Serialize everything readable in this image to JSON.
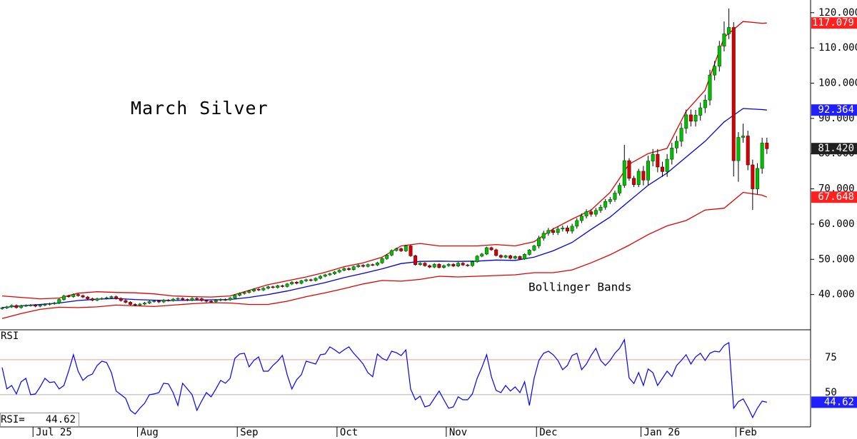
{
  "chart_data": [
    {
      "type": "candlestick",
      "title": "March Silver",
      "annotation": "Bollinger Bands",
      "up_color": "#00c000",
      "down_color": "#d80000",
      "xlim": [
        -0.45,
        170.2
      ],
      "ylim": [
        30,
        123.6
      ],
      "yticks": [
        {
          "value": 40,
          "label": "40.000"
        },
        {
          "value": 50,
          "label": "50.000"
        },
        {
          "value": 60,
          "label": "60.000"
        },
        {
          "value": 70,
          "label": "70.000"
        },
        {
          "value": 80,
          "label": "80.000"
        },
        {
          "value": 90,
          "label": "90.000"
        },
        {
          "value": 100,
          "label": "100.000"
        },
        {
          "value": 110,
          "label": "110.000"
        },
        {
          "value": 120,
          "label": "120.000"
        }
      ],
      "xticks": [
        {
          "value": 6.5,
          "label": "Jul 25"
        },
        {
          "value": 28.5,
          "label": "Aug"
        },
        {
          "value": 49.5,
          "label": "Sep"
        },
        {
          "value": 70.5,
          "label": "Oct"
        },
        {
          "value": 93.5,
          "label": "Nov"
        },
        {
          "value": 112.5,
          "label": "Dec"
        },
        {
          "value": 134.5,
          "label": "Jan 26"
        },
        {
          "value": 154.5,
          "label": "Feb"
        }
      ],
      "open": [
        36.0,
        36.2,
        36.5,
        36.9,
        36.3,
        36.8,
        36.9,
        37.0,
        36.7,
        37.0,
        37.2,
        37.4,
        37.6,
        38.6,
        39.6,
        39.4,
        40.0,
        39.7,
        39.3,
        38.8,
        38.4,
        38.8,
        38.9,
        39.1,
        39.4,
        38.9,
        38.3,
        37.8,
        37.2,
        37.0,
        37.3,
        37.6,
        38.0,
        38.2,
        37.9,
        38.4,
        38.3,
        38.7,
        38.9,
        38.6,
        38.4,
        38.9,
        38.8,
        38.3,
        38.1,
        38.0,
        38.4,
        38.6,
        38.5,
        39.0,
        39.8,
        40.3,
        40.6,
        41.0,
        41.5,
        41.3,
        41.8,
        42.2,
        42.0,
        42.5,
        42.3,
        43.0,
        43.5,
        43.2,
        43.9,
        44.2,
        44.0,
        44.6,
        45.2,
        45.6,
        45.9,
        46.4,
        46.9,
        47.4,
        47.1,
        47.9,
        48.3,
        48.0,
        48.5,
        48.4,
        49.0,
        50.2,
        51.2,
        52.5,
        53.0,
        52.4,
        53.8,
        51.0,
        48.5,
        48.9,
        48.2,
        47.8,
        48.6,
        47.7,
        48.2,
        48.6,
        48.1,
        48.9,
        48.4,
        48.2,
        49.3,
        50.9,
        51.5,
        53.3,
        52.7,
        51.1,
        50.6,
        51.0,
        50.3,
        50.8,
        50.1,
        51.4,
        52.6,
        53.8,
        56.0,
        57.4,
        58.2,
        57.6,
        58.6,
        58.9,
        58.0,
        59.4,
        61.0,
        62.3,
        63.5,
        62.8,
        63.9,
        64.8,
        66.4,
        67.0,
        68.8,
        71.0,
        78.0,
        73.0,
        71.2,
        75.0,
        72.5,
        77.9,
        79.8,
        76.2,
        74.9,
        78.4,
        81.6,
        83.5,
        87.2,
        91.0,
        89.2,
        90.9,
        93.0,
        95.2,
        102.3,
        104.8,
        110.5,
        114.0,
        115.8,
        78.0,
        84.6,
        85.0,
        76.8,
        70.0,
        75.8,
        83.0
      ],
      "high": [
        36.5,
        36.8,
        37.2,
        37.2,
        37.1,
        37.2,
        37.3,
        37.3,
        37.3,
        37.5,
        37.7,
        37.9,
        38.9,
        39.9,
        39.9,
        40.3,
        40.3,
        40.0,
        39.6,
        39.1,
        39.1,
        39.2,
        39.4,
        39.7,
        39.7,
        39.2,
        38.6,
        38.1,
        37.5,
        37.6,
        37.9,
        38.3,
        38.5,
        38.5,
        38.7,
        38.7,
        39.0,
        39.2,
        39.2,
        38.9,
        39.2,
        39.2,
        39.1,
        38.6,
        38.4,
        38.7,
        38.9,
        38.9,
        39.3,
        40.1,
        40.6,
        40.9,
        41.3,
        41.8,
        41.8,
        42.1,
        42.5,
        42.5,
        42.8,
        42.8,
        43.3,
        43.8,
        43.8,
        44.2,
        44.5,
        44.5,
        44.9,
        45.5,
        45.9,
        46.2,
        46.7,
        47.2,
        47.7,
        47.7,
        48.2,
        48.6,
        48.6,
        48.8,
        48.8,
        49.3,
        50.5,
        51.5,
        52.8,
        53.3,
        53.3,
        54.1,
        54.1,
        51.3,
        49.2,
        49.2,
        48.5,
        48.9,
        48.9,
        48.5,
        48.9,
        48.9,
        49.2,
        49.2,
        48.7,
        49.6,
        51.2,
        51.8,
        53.6,
        53.6,
        53.0,
        51.4,
        51.3,
        51.3,
        51.1,
        51.1,
        51.7,
        52.9,
        54.1,
        56.7,
        58.1,
        58.9,
        58.9,
        59.3,
        59.6,
        59.6,
        60.1,
        61.7,
        63.0,
        64.2,
        64.2,
        64.6,
        65.5,
        67.1,
        67.7,
        69.5,
        71.7,
        82.5,
        78.7,
        73.7,
        75.7,
        76.5,
        79.4,
        81.3,
        81.3,
        77.7,
        79.9,
        83.1,
        85.0,
        88.7,
        92.5,
        92.5,
        92.4,
        94.5,
        96.7,
        103.8,
        106.3,
        112.0,
        117.5,
        121.2,
        117.3,
        86.1,
        88.5,
        86.5,
        78.3,
        77.3,
        84.5,
        84.5
      ],
      "low": [
        35.7,
        35.9,
        36.2,
        36.0,
        36.0,
        36.5,
        36.6,
        36.4,
        36.4,
        36.7,
        36.9,
        37.1,
        37.3,
        38.3,
        39.1,
        39.1,
        39.4,
        39.0,
        38.5,
        38.1,
        38.1,
        38.5,
        38.6,
        38.8,
        38.6,
        38.0,
        37.5,
        36.9,
        36.7,
        36.7,
        37.0,
        37.3,
        37.7,
        37.6,
        37.6,
        38.0,
        38.0,
        38.4,
        38.3,
        38.1,
        38.1,
        38.5,
        38.0,
        37.8,
        37.7,
        37.7,
        38.1,
        38.2,
        38.2,
        38.7,
        39.5,
        40.0,
        40.3,
        40.7,
        41.0,
        41.0,
        41.5,
        41.7,
        41.7,
        42.0,
        42.0,
        42.7,
        42.9,
        42.9,
        43.6,
        43.7,
        43.7,
        44.3,
        44.9,
        45.3,
        45.6,
        46.1,
        46.6,
        46.8,
        46.8,
        47.6,
        47.7,
        47.7,
        48.1,
        48.1,
        48.7,
        49.9,
        50.9,
        52.2,
        52.1,
        52.1,
        50.7,
        48.2,
        48.2,
        47.9,
        47.5,
        47.5,
        47.4,
        47.4,
        47.9,
        47.8,
        47.8,
        48.1,
        47.9,
        47.9,
        49.0,
        50.6,
        51.2,
        52.4,
        50.8,
        50.3,
        50.3,
        50.0,
        50.0,
        49.8,
        49.8,
        51.1,
        52.3,
        53.1,
        55.3,
        56.7,
        56.9,
        56.9,
        57.9,
        57.3,
        57.3,
        58.7,
        60.3,
        61.6,
        62.1,
        62.1,
        63.2,
        64.1,
        65.7,
        66.3,
        68.1,
        70.3,
        72.3,
        70.5,
        70.5,
        71.0,
        71.0,
        76.4,
        74.7,
        73.4,
        73.4,
        76.9,
        80.1,
        82.0,
        85.7,
        87.7,
        87.7,
        89.4,
        91.5,
        93.7,
        100.8,
        103.3,
        109.0,
        112.5,
        73.5,
        72.0,
        83.1,
        75.3,
        64.0,
        68.5,
        74.3,
        79.9
      ],
      "close": [
        36.2,
        36.5,
        36.9,
        36.3,
        36.8,
        36.9,
        37.0,
        36.7,
        37.0,
        37.2,
        37.4,
        37.6,
        38.6,
        39.6,
        39.4,
        40.0,
        39.7,
        39.3,
        38.8,
        38.4,
        38.8,
        38.9,
        39.1,
        39.4,
        38.9,
        38.3,
        37.8,
        37.2,
        37.0,
        37.3,
        37.6,
        38.0,
        38.2,
        37.9,
        38.4,
        38.3,
        38.7,
        38.9,
        38.6,
        38.4,
        38.9,
        38.8,
        38.3,
        38.1,
        38.0,
        38.4,
        38.6,
        38.5,
        39.0,
        39.8,
        40.3,
        40.6,
        41.0,
        41.5,
        41.3,
        41.8,
        42.2,
        42.0,
        42.5,
        42.3,
        43.0,
        43.5,
        43.2,
        43.9,
        44.2,
        44.0,
        44.6,
        45.2,
        45.6,
        45.9,
        46.4,
        46.9,
        47.4,
        47.1,
        47.9,
        48.3,
        48.0,
        48.5,
        48.4,
        49.0,
        50.2,
        51.2,
        52.5,
        53.0,
        52.4,
        53.8,
        51.0,
        48.5,
        48.9,
        48.2,
        47.8,
        48.6,
        47.7,
        48.2,
        48.6,
        48.1,
        48.9,
        48.4,
        48.2,
        49.3,
        50.9,
        51.5,
        53.3,
        52.7,
        51.1,
        50.6,
        51.0,
        50.3,
        50.8,
        50.1,
        51.4,
        52.6,
        53.8,
        56.0,
        57.4,
        58.2,
        57.6,
        58.6,
        58.9,
        58.0,
        59.4,
        61.0,
        62.3,
        63.5,
        62.8,
        63.9,
        64.8,
        66.4,
        67.0,
        68.8,
        71.0,
        78.0,
        73.0,
        71.2,
        75.0,
        72.5,
        77.9,
        79.8,
        76.2,
        74.9,
        78.4,
        81.6,
        83.5,
        87.2,
        91.0,
        89.2,
        90.9,
        93.0,
        95.2,
        102.3,
        104.8,
        110.5,
        114.0,
        115.8,
        78.0,
        84.6,
        85.0,
        76.8,
        70.0,
        75.8,
        83.0,
        81.4
      ],
      "bands": {
        "x": [
          0,
          4,
          8,
          12,
          16,
          20,
          24,
          28,
          32,
          36,
          40,
          44,
          48,
          52,
          56,
          60,
          64,
          68,
          72,
          76,
          80,
          84,
          88,
          92,
          96,
          100,
          104,
          108,
          112,
          116,
          120,
          124,
          128,
          132,
          136,
          140,
          144,
          148,
          152,
          156,
          160,
          161
        ],
        "series": [
          {
            "color": "#e00000",
            "values": [
              39.6,
              39.2,
              38.8,
              39.0,
              40.4,
              40.8,
              40.6,
              40.5,
              40.2,
              39.6,
              39.4,
              39.3,
              39.6,
              41.2,
              42.8,
              43.9,
              45.0,
              46.3,
              47.9,
              49.0,
              50.6,
              53.8,
              54.5,
              53.8,
              53.8,
              53.8,
              54.2,
              53.8,
              55.0,
              58.6,
              61.4,
              64.0,
              69.0,
              77.0,
              80.0,
              81.5,
              92.0,
              98.0,
              113.0,
              117.5,
              117.0,
              117.079
            ]
          },
          {
            "color": "#0000e0",
            "values": [
              36.3,
              36.8,
              37.2,
              37.6,
              38.3,
              38.7,
              38.9,
              38.6,
              38.4,
              38.3,
              38.4,
              38.5,
              38.6,
              39.2,
              40.0,
              41.0,
              42.2,
              43.4,
              44.8,
              46.0,
              47.3,
              48.8,
              49.4,
              49.5,
              49.4,
              49.5,
              49.8,
              49.7,
              50.6,
              52.4,
              54.8,
              58.5,
              62.0,
              66.5,
              71.0,
              74.5,
              79.0,
              83.5,
              89.0,
              92.8,
              92.5,
              92.364
            ]
          },
          {
            "color": "#e00000",
            "values": [
              33.2,
              34.6,
              35.8,
              36.4,
              36.3,
              36.5,
              37.0,
              36.8,
              36.6,
              37.0,
              37.4,
              37.7,
              37.6,
              37.2,
              37.2,
              38.1,
              39.4,
              40.5,
              41.7,
              43.0,
              44.0,
              43.8,
              44.3,
              45.2,
              45.0,
              45.2,
              45.4,
              45.6,
              46.2,
              46.2,
              47.0,
              49.0,
              51.3,
              54.0,
              57.0,
              59.5,
              61.0,
              64.0,
              64.5,
              69.0,
              68.2,
              67.648
            ]
          }
        ]
      },
      "price_labels": [
        {
          "value": 117.079,
          "color": "#ff2020"
        },
        {
          "value": 92.364,
          "color": "#2020ff"
        },
        {
          "value": 81.42,
          "label": "81.420",
          "color": "#202020"
        },
        {
          "value": 67.648,
          "color": "#ff2020"
        }
      ]
    },
    {
      "type": "line",
      "title": "RSI",
      "readout_label": "RSI=",
      "ylim": [
        27,
        96.4
      ],
      "yticks": [
        50,
        75
      ],
      "level_colors": [
        "#b0b0b0",
        "#f0a090"
      ],
      "badge_color": "#2020ff",
      "series": [
        {
          "color": "#0000ff",
          "values": [
            69.4,
            54.1,
            56.6,
            50.5,
            59.2,
            61.7,
            50,
            50.5,
            55.6,
            61.7,
            58.7,
            59.2,
            54.1,
            56.6,
            66.8,
            78.6,
            66.8,
            60.2,
            63.3,
            64.8,
            70.9,
            74,
            73,
            65.8,
            52.6,
            50,
            47.4,
            38.8,
            36.2,
            40.3,
            43.9,
            50,
            50.5,
            51.5,
            58.2,
            57.7,
            51.5,
            42.3,
            58.2,
            54.1,
            50,
            38.8,
            45.4,
            51.5,
            48.5,
            54.1,
            60.2,
            58.2,
            61.7,
            76,
            79.1,
            79.6,
            69.9,
            74.5,
            77,
            66.8,
            66.8,
            70.9,
            74,
            78.1,
            64.3,
            54.1,
            60.7,
            64.3,
            74,
            73,
            71.9,
            78.6,
            79.1,
            84.2,
            82.1,
            79.6,
            82.1,
            84.2,
            79.6,
            76,
            71.9,
            65.8,
            62.8,
            79.1,
            76,
            74.5,
            81.1,
            80,
            78,
            82,
            54,
            46.4,
            49,
            41.3,
            42.3,
            47.4,
            52.6,
            46.4,
            40.3,
            41.3,
            48.5,
            46.4,
            46.4,
            50.5,
            61.7,
            69.4,
            78.6,
            62.8,
            53.1,
            51.5,
            56.6,
            52.6,
            55.6,
            51.5,
            59.2,
            42.3,
            61.7,
            74.5,
            79.6,
            81.1,
            78.6,
            74.5,
            67.9,
            70.9,
            78.1,
            79.6,
            67.9,
            71.9,
            78.1,
            83.2,
            74.5,
            70.9,
            74.5,
            79.6,
            83.2,
            89.3,
            62,
            58,
            65.8,
            56.6,
            68.4,
            65.8,
            56.6,
            61.7,
            66.8,
            63,
            70.9,
            74.5,
            78.6,
            71.9,
            77,
            79.6,
            74.5,
            79.6,
            81.1,
            80.6,
            85.2,
            87.2,
            40.3,
            45,
            47,
            41,
            33.7,
            40.3,
            45.4,
            44.62
          ]
        }
      ]
    }
  ]
}
